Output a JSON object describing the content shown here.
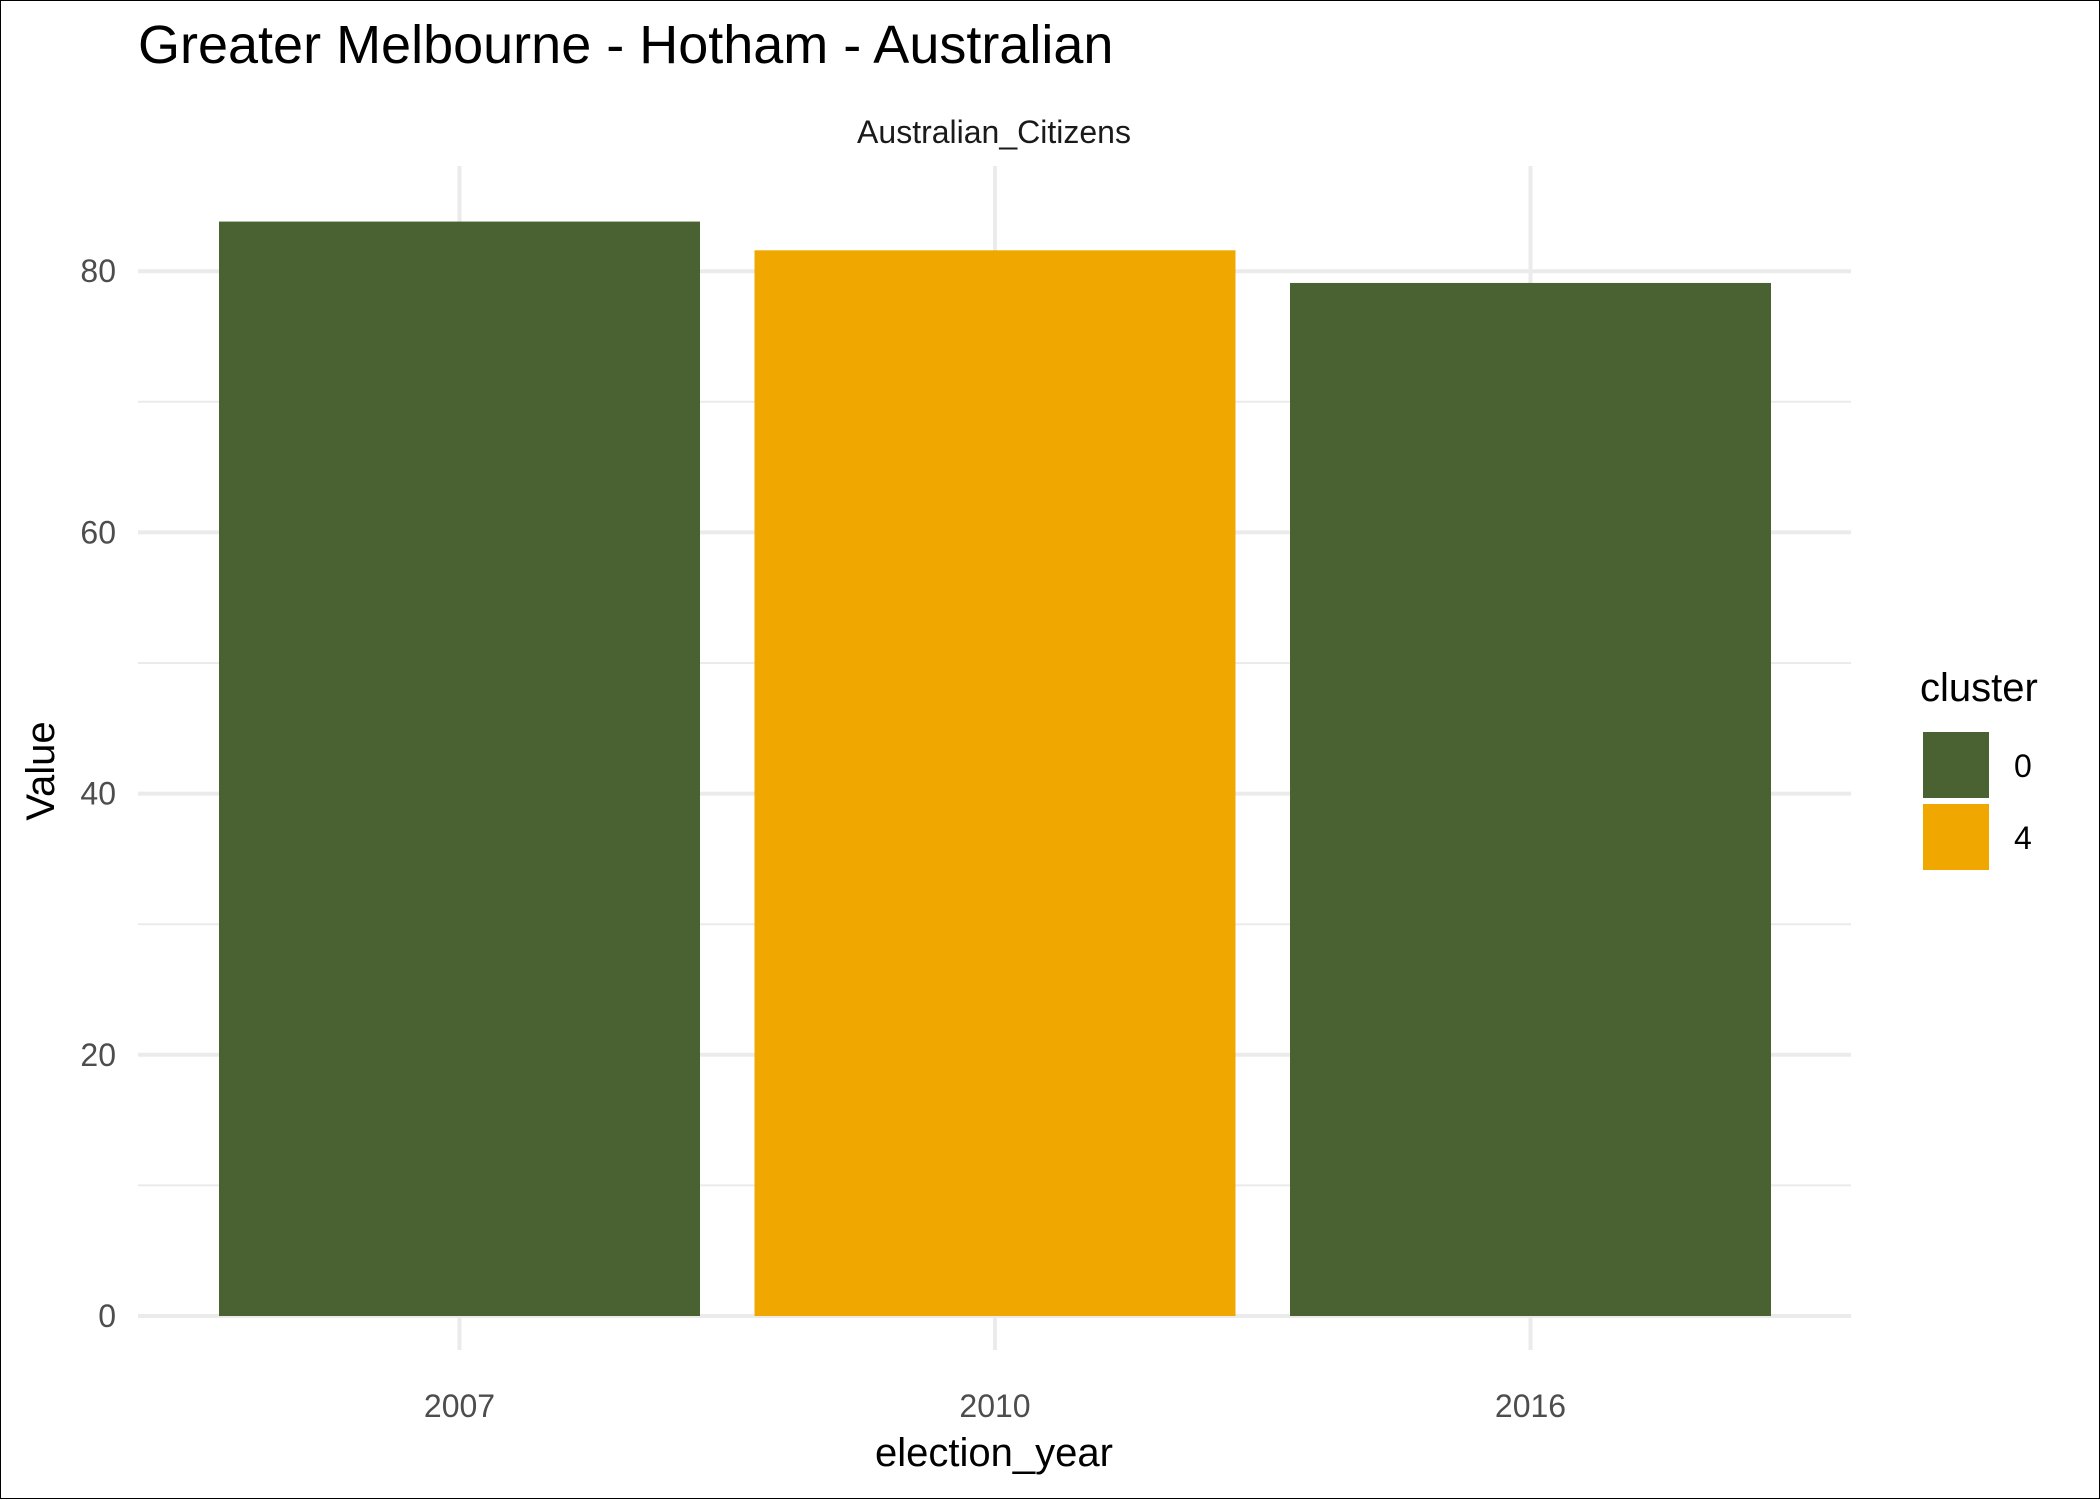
{
  "chart_data": {
    "type": "bar",
    "title": "Greater Melbourne - Hotham - Australian",
    "facet_label": "Australian_Citizens",
    "xlabel": "election_year",
    "ylabel": "Value",
    "categories": [
      "2007",
      "2010",
      "2016"
    ],
    "values": [
      83.8,
      81.6,
      79.1
    ],
    "clusters": [
      "0",
      "4",
      "0"
    ],
    "ylim": [
      0,
      88
    ],
    "yticks": [
      0,
      20,
      40,
      60,
      80
    ],
    "grid": true,
    "legend": {
      "title": "cluster",
      "position": "right",
      "entries": [
        {
          "label": "0",
          "color": "#4A6132"
        },
        {
          "label": "4",
          "color": "#F0A800"
        }
      ]
    }
  }
}
